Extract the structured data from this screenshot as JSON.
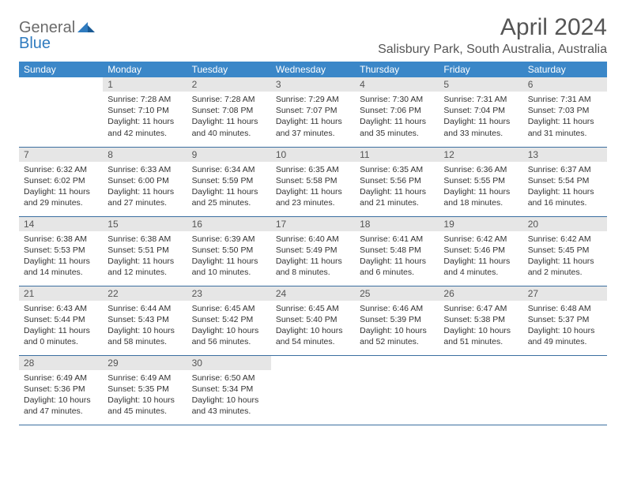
{
  "logo": {
    "part1": "General",
    "part2": "Blue"
  },
  "title": "April 2024",
  "location": "Salisbury Park, South Australia, Australia",
  "weekdays": [
    "Sunday",
    "Monday",
    "Tuesday",
    "Wednesday",
    "Thursday",
    "Friday",
    "Saturday"
  ],
  "header_bg": "#3b87c8",
  "daynum_bg": "#e6e6e6",
  "rule_color": "#3b6fa0",
  "weeks": [
    [
      {
        "n": "",
        "lines": []
      },
      {
        "n": "1",
        "lines": [
          "Sunrise: 7:28 AM",
          "Sunset: 7:10 PM",
          "Daylight: 11 hours",
          "and 42 minutes."
        ]
      },
      {
        "n": "2",
        "lines": [
          "Sunrise: 7:28 AM",
          "Sunset: 7:08 PM",
          "Daylight: 11 hours",
          "and 40 minutes."
        ]
      },
      {
        "n": "3",
        "lines": [
          "Sunrise: 7:29 AM",
          "Sunset: 7:07 PM",
          "Daylight: 11 hours",
          "and 37 minutes."
        ]
      },
      {
        "n": "4",
        "lines": [
          "Sunrise: 7:30 AM",
          "Sunset: 7:06 PM",
          "Daylight: 11 hours",
          "and 35 minutes."
        ]
      },
      {
        "n": "5",
        "lines": [
          "Sunrise: 7:31 AM",
          "Sunset: 7:04 PM",
          "Daylight: 11 hours",
          "and 33 minutes."
        ]
      },
      {
        "n": "6",
        "lines": [
          "Sunrise: 7:31 AM",
          "Sunset: 7:03 PM",
          "Daylight: 11 hours",
          "and 31 minutes."
        ]
      }
    ],
    [
      {
        "n": "7",
        "lines": [
          "Sunrise: 6:32 AM",
          "Sunset: 6:02 PM",
          "Daylight: 11 hours",
          "and 29 minutes."
        ]
      },
      {
        "n": "8",
        "lines": [
          "Sunrise: 6:33 AM",
          "Sunset: 6:00 PM",
          "Daylight: 11 hours",
          "and 27 minutes."
        ]
      },
      {
        "n": "9",
        "lines": [
          "Sunrise: 6:34 AM",
          "Sunset: 5:59 PM",
          "Daylight: 11 hours",
          "and 25 minutes."
        ]
      },
      {
        "n": "10",
        "lines": [
          "Sunrise: 6:35 AM",
          "Sunset: 5:58 PM",
          "Daylight: 11 hours",
          "and 23 minutes."
        ]
      },
      {
        "n": "11",
        "lines": [
          "Sunrise: 6:35 AM",
          "Sunset: 5:56 PM",
          "Daylight: 11 hours",
          "and 21 minutes."
        ]
      },
      {
        "n": "12",
        "lines": [
          "Sunrise: 6:36 AM",
          "Sunset: 5:55 PM",
          "Daylight: 11 hours",
          "and 18 minutes."
        ]
      },
      {
        "n": "13",
        "lines": [
          "Sunrise: 6:37 AM",
          "Sunset: 5:54 PM",
          "Daylight: 11 hours",
          "and 16 minutes."
        ]
      }
    ],
    [
      {
        "n": "14",
        "lines": [
          "Sunrise: 6:38 AM",
          "Sunset: 5:53 PM",
          "Daylight: 11 hours",
          "and 14 minutes."
        ]
      },
      {
        "n": "15",
        "lines": [
          "Sunrise: 6:38 AM",
          "Sunset: 5:51 PM",
          "Daylight: 11 hours",
          "and 12 minutes."
        ]
      },
      {
        "n": "16",
        "lines": [
          "Sunrise: 6:39 AM",
          "Sunset: 5:50 PM",
          "Daylight: 11 hours",
          "and 10 minutes."
        ]
      },
      {
        "n": "17",
        "lines": [
          "Sunrise: 6:40 AM",
          "Sunset: 5:49 PM",
          "Daylight: 11 hours",
          "and 8 minutes."
        ]
      },
      {
        "n": "18",
        "lines": [
          "Sunrise: 6:41 AM",
          "Sunset: 5:48 PM",
          "Daylight: 11 hours",
          "and 6 minutes."
        ]
      },
      {
        "n": "19",
        "lines": [
          "Sunrise: 6:42 AM",
          "Sunset: 5:46 PM",
          "Daylight: 11 hours",
          "and 4 minutes."
        ]
      },
      {
        "n": "20",
        "lines": [
          "Sunrise: 6:42 AM",
          "Sunset: 5:45 PM",
          "Daylight: 11 hours",
          "and 2 minutes."
        ]
      }
    ],
    [
      {
        "n": "21",
        "lines": [
          "Sunrise: 6:43 AM",
          "Sunset: 5:44 PM",
          "Daylight: 11 hours",
          "and 0 minutes."
        ]
      },
      {
        "n": "22",
        "lines": [
          "Sunrise: 6:44 AM",
          "Sunset: 5:43 PM",
          "Daylight: 10 hours",
          "and 58 minutes."
        ]
      },
      {
        "n": "23",
        "lines": [
          "Sunrise: 6:45 AM",
          "Sunset: 5:42 PM",
          "Daylight: 10 hours",
          "and 56 minutes."
        ]
      },
      {
        "n": "24",
        "lines": [
          "Sunrise: 6:45 AM",
          "Sunset: 5:40 PM",
          "Daylight: 10 hours",
          "and 54 minutes."
        ]
      },
      {
        "n": "25",
        "lines": [
          "Sunrise: 6:46 AM",
          "Sunset: 5:39 PM",
          "Daylight: 10 hours",
          "and 52 minutes."
        ]
      },
      {
        "n": "26",
        "lines": [
          "Sunrise: 6:47 AM",
          "Sunset: 5:38 PM",
          "Daylight: 10 hours",
          "and 51 minutes."
        ]
      },
      {
        "n": "27",
        "lines": [
          "Sunrise: 6:48 AM",
          "Sunset: 5:37 PM",
          "Daylight: 10 hours",
          "and 49 minutes."
        ]
      }
    ],
    [
      {
        "n": "28",
        "lines": [
          "Sunrise: 6:49 AM",
          "Sunset: 5:36 PM",
          "Daylight: 10 hours",
          "and 47 minutes."
        ]
      },
      {
        "n": "29",
        "lines": [
          "Sunrise: 6:49 AM",
          "Sunset: 5:35 PM",
          "Daylight: 10 hours",
          "and 45 minutes."
        ]
      },
      {
        "n": "30",
        "lines": [
          "Sunrise: 6:50 AM",
          "Sunset: 5:34 PM",
          "Daylight: 10 hours",
          "and 43 minutes."
        ]
      },
      {
        "n": "",
        "lines": []
      },
      {
        "n": "",
        "lines": []
      },
      {
        "n": "",
        "lines": []
      },
      {
        "n": "",
        "lines": []
      }
    ]
  ]
}
